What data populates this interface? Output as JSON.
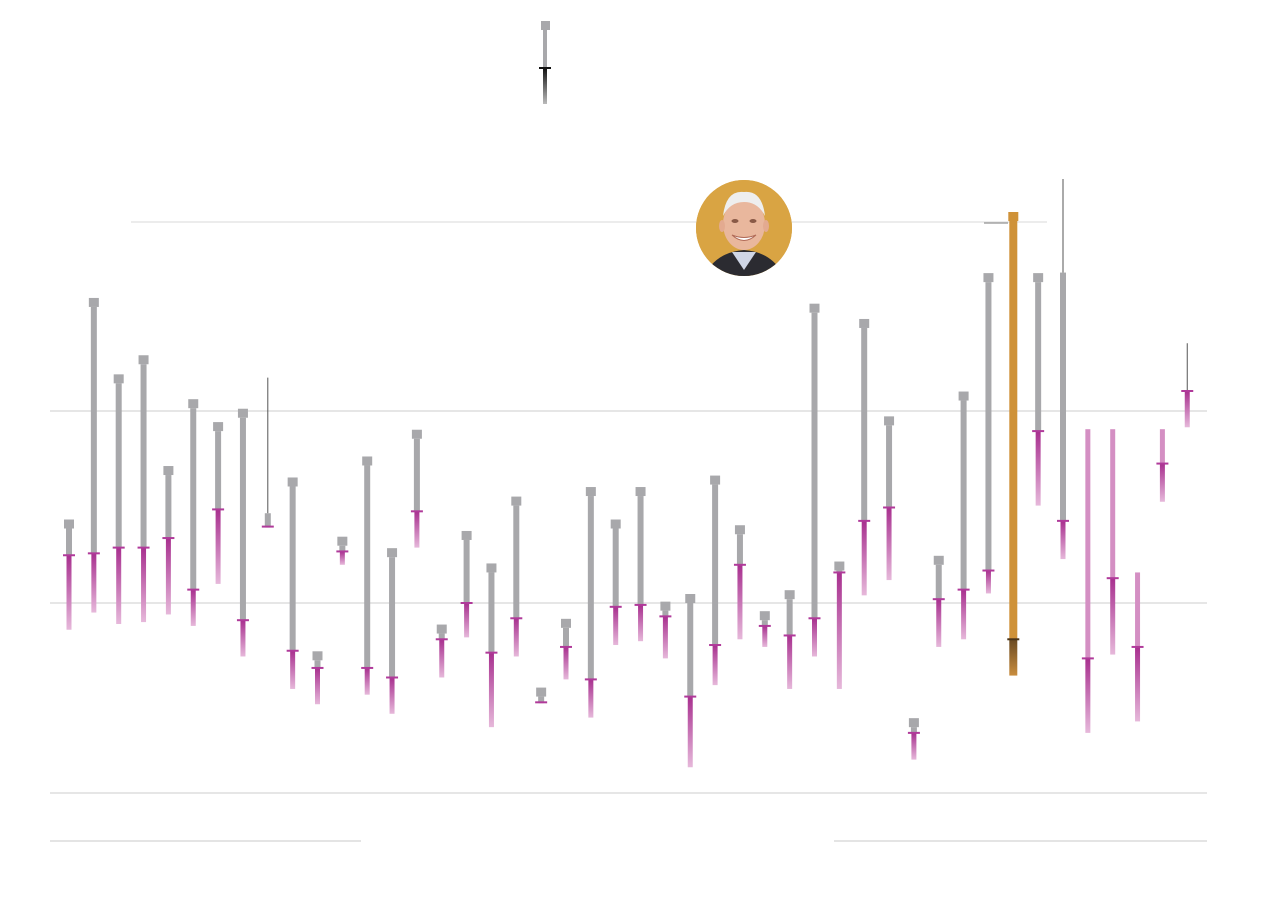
{
  "chart_data": {
    "type": "range-bar",
    "title": "",
    "xlabel": "",
    "ylabel": "",
    "legend": {
      "sample_top": 9,
      "sample_mid": 2,
      "sample_bottom": 0
    },
    "gridlines": [
      -10,
      0,
      10
    ],
    "highlight_color": "#cf9238",
    "gray_color": "#a8a8ab",
    "magenta_color": "#b03a9a",
    "pale_magenta_color": "#d48fc3",
    "reference_line": 20,
    "series": [
      {
        "top": 3.9,
        "mid": 2.5,
        "bottom": -1.4,
        "style": "normal"
      },
      {
        "top": 15.5,
        "mid": 2.6,
        "bottom": -0.5,
        "style": "normal"
      },
      {
        "top": 11.5,
        "mid": 2.9,
        "bottom": -1.1,
        "style": "normal"
      },
      {
        "top": 12.5,
        "mid": 2.9,
        "bottom": -1.0,
        "style": "normal"
      },
      {
        "top": 6.7,
        "mid": 3.4,
        "bottom": -0.6,
        "style": "normal"
      },
      {
        "top": 10.2,
        "mid": 0.7,
        "bottom": -1.2,
        "style": "normal"
      },
      {
        "top": 9.0,
        "mid": 4.9,
        "bottom": 1.0,
        "style": "normal"
      },
      {
        "top": 9.7,
        "mid": -0.9,
        "bottom": -2.8,
        "style": "normal"
      },
      {
        "top": 4.7,
        "mid": 4.0,
        "bottom": 4.0,
        "style": "thin",
        "thin_top": 11.8
      },
      {
        "top": 6.1,
        "mid": -2.5,
        "bottom": -4.5,
        "style": "normal"
      },
      {
        "top": -3.0,
        "mid": -3.4,
        "bottom": -5.3,
        "style": "normal"
      },
      {
        "top": 3.0,
        "mid": 2.7,
        "bottom": 2.0,
        "style": "normal"
      },
      {
        "top": 7.2,
        "mid": -3.4,
        "bottom": -4.8,
        "style": "normal"
      },
      {
        "top": 2.4,
        "mid": -3.9,
        "bottom": -5.8,
        "style": "normal"
      },
      {
        "top": 8.6,
        "mid": 4.8,
        "bottom": 2.9,
        "style": "normal"
      },
      {
        "top": -1.6,
        "mid": -1.9,
        "bottom": -3.9,
        "style": "normal"
      },
      {
        "top": 3.3,
        "mid": 0.0,
        "bottom": -1.8,
        "style": "normal"
      },
      {
        "top": 1.6,
        "mid": -2.6,
        "bottom": -6.5,
        "style": "normal"
      },
      {
        "top": 5.1,
        "mid": -0.8,
        "bottom": -2.8,
        "style": "normal"
      },
      {
        "top": -4.9,
        "mid": -5.2,
        "bottom": -5.2,
        "style": "normal"
      },
      {
        "top": -1.3,
        "mid": -2.3,
        "bottom": -4.0,
        "style": "normal"
      },
      {
        "top": 5.6,
        "mid": -4.0,
        "bottom": -6.0,
        "style": "normal"
      },
      {
        "top": 3.9,
        "mid": -0.2,
        "bottom": -2.2,
        "style": "normal"
      },
      {
        "top": 5.6,
        "mid": -0.1,
        "bottom": -2.0,
        "style": "normal"
      },
      {
        "top": -0.4,
        "mid": -0.7,
        "bottom": -2.9,
        "style": "normal"
      },
      {
        "top": 0.0,
        "mid": -4.9,
        "bottom": -8.6,
        "style": "normal"
      },
      {
        "top": 6.2,
        "mid": -2.2,
        "bottom": -4.3,
        "style": "normal"
      },
      {
        "top": 3.6,
        "mid": 2.0,
        "bottom": -1.9,
        "style": "normal"
      },
      {
        "top": -0.9,
        "mid": -1.2,
        "bottom": -2.3,
        "style": "normal"
      },
      {
        "top": 0.2,
        "mid": -1.7,
        "bottom": -4.5,
        "style": "normal"
      },
      {
        "top": 15.2,
        "mid": -0.8,
        "bottom": -2.8,
        "style": "normal"
      },
      {
        "top": 1.7,
        "mid": 1.6,
        "bottom": -4.5,
        "style": "normal"
      },
      {
        "top": 14.4,
        "mid": 4.3,
        "bottom": 0.4,
        "style": "normal"
      },
      {
        "top": 9.3,
        "mid": 5.0,
        "bottom": 1.2,
        "style": "normal"
      },
      {
        "top": -6.5,
        "mid": -6.8,
        "bottom": -8.2,
        "style": "normal"
      },
      {
        "top": 2.0,
        "mid": 0.2,
        "bottom": -2.3,
        "style": "normal"
      },
      {
        "top": 10.6,
        "mid": 0.7,
        "bottom": -1.9,
        "style": "normal"
      },
      {
        "top": 16.8,
        "mid": 1.7,
        "bottom": 0.5,
        "style": "normal"
      },
      {
        "top": 20.0,
        "mid": -1.9,
        "bottom": -3.8,
        "style": "highlight"
      },
      {
        "top": 16.8,
        "mid": 9.0,
        "bottom": 5.1,
        "style": "normal"
      },
      {
        "top": 17.3,
        "mid": 4.3,
        "bottom": 2.3,
        "style": "thin",
        "thin_top": 22.2
      },
      {
        "top": 9.1,
        "mid": -2.9,
        "bottom": -6.8,
        "style": "pale"
      },
      {
        "top": 9.1,
        "mid": 1.3,
        "bottom": -2.7,
        "style": "pale"
      },
      {
        "top": 1.6,
        "mid": -2.3,
        "bottom": -6.2,
        "style": "pale"
      },
      {
        "top": 9.1,
        "mid": 7.3,
        "bottom": 5.3,
        "style": "pale"
      },
      {
        "top": 11.1,
        "mid": 11.1,
        "bottom": 9.2,
        "style": "thin",
        "thin_top": 13.6
      }
    ]
  }
}
